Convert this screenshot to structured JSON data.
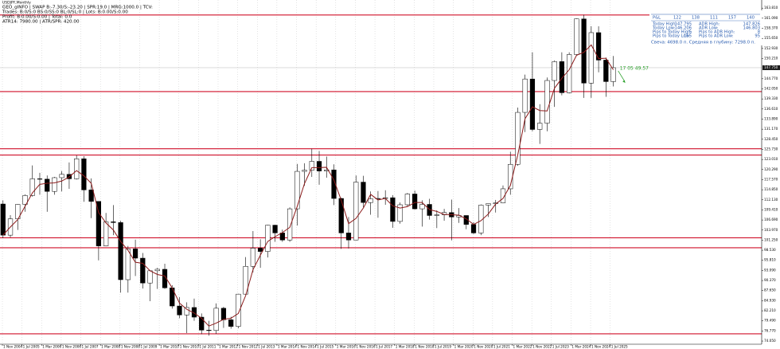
{
  "header": {
    "symbol": "USDJPY,Monthly",
    "lines": [
      "GEO_gINFO | SWAP B:-7.30/S:-23.20 | SPR:19.0 | MRG:1000.0 | TCV:",
      "Trades: B:0/S:0 BS:0/SS:0 BL:0/SL:0 | Lots: B:0.00/S:0.00",
      "Profit: B:0.00/S:0.00 | Total: 0.0",
      "ATR14: 7980.00 | ATR/SPR: 420.00"
    ]
  },
  "info_panel": {
    "bar_label": "P&L",
    "bar_values": [
      "122",
      "138",
      "111",
      "157",
      "140"
    ],
    "rows": [
      [
        "Today High:",
        "147.795",
        "ADR High:",
        "147.826"
      ],
      [
        "Today Low:",
        "146.206",
        "ADR Low:",
        "146.803"
      ],
      [
        "Pips to Today High:",
        "5",
        "Pips to ADR High:",
        "8"
      ],
      [
        "Pips to Today Low:",
        "155",
        "Pips to ADR Low:",
        "95"
      ]
    ],
    "candle_note": "Свеча: 4698.0 п. Средняя в глубину: 7298.0 п."
  },
  "chart_data": {
    "type": "candlestick",
    "timer": "17 05 49.57",
    "x": [
      2004.75,
      2005,
      2005.25,
      2005.5,
      2005.75,
      2006,
      2006.25,
      2006.5,
      2006.75,
      2007,
      2007.25,
      2007.5,
      2007.75,
      2008,
      2008.25,
      2008.5,
      2008.75,
      2009,
      2009.25,
      2009.5,
      2009.75,
      2010,
      2010.25,
      2010.5,
      2010.75,
      2011,
      2011.25,
      2011.5,
      2011.75,
      2012,
      2012.25,
      2012.5,
      2012.75,
      2013,
      2013.25,
      2013.5,
      2013.75,
      2014,
      2014.25,
      2014.5,
      2014.75,
      2015,
      2015.25,
      2015.5,
      2015.75,
      2016,
      2016.25,
      2016.5,
      2016.75,
      2017,
      2017.25,
      2017.5,
      2017.75,
      2018,
      2018.25,
      2018.5,
      2018.75,
      2019,
      2019.25,
      2019.5,
      2019.75,
      2020,
      2020.25,
      2020.5,
      2020.75,
      2021,
      2021.25,
      2021.5,
      2021.75,
      2022,
      2022.25,
      2022.5,
      2022.75,
      2023,
      2023.25,
      2023.5,
      2023.75,
      2024,
      2024.25,
      2024.5,
      2024.75,
      2025,
      2025.25,
      2025.5
    ],
    "open": [
      111.0,
      102.6,
      107,
      110.9,
      113.3,
      117.8,
      117.7,
      114.4,
      118.1,
      119.0,
      117.8,
      123.2,
      114.8,
      111.7,
      99.7,
      106.2,
      106.0,
      90.6,
      98.9,
      96.4,
      89.7,
      93.0,
      93.4,
      88.4,
      83.5,
      81.1,
      83.1,
      80.5,
      77.0,
      76.9,
      82.9,
      79.8,
      78.0,
      86.7,
      94.2,
      99.1,
      98.2,
      105.3,
      103.2,
      101.3,
      109.7,
      119.8,
      120.1,
      122.5,
      119.9,
      120.2,
      112.5,
      103.2,
      101.3,
      116.9,
      111.4,
      112.4,
      112.5,
      112.7,
      106.3,
      110.8,
      113.7,
      109.7,
      110.9,
      107.9,
      108.1,
      108.7,
      107.5,
      107.9,
      105.5,
      103.2,
      110.7,
      111.1,
      111.3,
      115.1,
      121.7,
      135.7,
      144.7,
      131.1,
      132.8,
      144.3,
      149.4,
      141.0,
      151.3,
      160.9,
      143.6,
      157.2,
      149.8,
      144.0
    ],
    "high": [
      112.0,
      108.0,
      111,
      113.6,
      121.4,
      119.4,
      118.7,
      118.3,
      119.9,
      122.2,
      124.1,
      123.9,
      117.9,
      111.7,
      108.6,
      110.7,
      106.5,
      99.7,
      101.4,
      97.8,
      93.1,
      93.8,
      94.9,
      89.1,
      85.9,
      84.5,
      85.5,
      81.5,
      79.5,
      84.2,
      83.3,
      80.6,
      86.8,
      96.7,
      103.7,
      101.5,
      105.4,
      105.4,
      104.1,
      110.1,
      121.8,
      122.0,
      125.9,
      125.3,
      123.8,
      121.7,
      112.7,
      107.5,
      118.7,
      118.6,
      114.4,
      114.5,
      114.7,
      113.4,
      111.4,
      114.0,
      114.6,
      112.0,
      112.4,
      109.3,
      109.7,
      112.2,
      109.9,
      107.9,
      106.1,
      110.9,
      111.1,
      112.1,
      116.0,
      125.1,
      137.0,
      145.9,
      151.9,
      137.9,
      145.1,
      149.7,
      151.9,
      151.9,
      161.0,
      162.0,
      158.9,
      158.9,
      150.5,
      150.9
    ],
    "low": [
      101.8,
      102.0,
      104,
      108.9,
      113,
      113.5,
      108.9,
      113.5,
      114.4,
      115.1,
      117.6,
      111.6,
      107.2,
      95.8,
      99.6,
      102.6,
      87.1,
      87.1,
      91.6,
      88.2,
      84.8,
      88.1,
      88.1,
      82.8,
      80.2,
      76.2,
      79.5,
      75.9,
      75.5,
      76.0,
      77.6,
      77.4,
      77.5,
      86.5,
      92.6,
      93.8,
      96.6,
      100.8,
      100.8,
      100.8,
      105.2,
      115.9,
      118.3,
      116.2,
      118.1,
      110.7,
      98.9,
      99.0,
      101.2,
      110.1,
      108.1,
      107.3,
      110.8,
      104.6,
      105.7,
      110.3,
      109.5,
      104.9,
      106.8,
      104.5,
      106.5,
      101.2,
      105.9,
      104.2,
      102.9,
      102.6,
      107.5,
      108.7,
      111.2,
      113.5,
      121.3,
      130.4,
      130.6,
      127.2,
      130.6,
      137.2,
      140.3,
      140.8,
      151.0,
      139.6,
      139.6,
      146.5,
      139.9,
      142.7
    ],
    "close": [
      102.6,
      107,
      110.9,
      113.3,
      117.8,
      117.7,
      114.4,
      118.1,
      119.0,
      117.8,
      123.2,
      114.8,
      111.7,
      99.7,
      106.2,
      106.0,
      90.6,
      98.9,
      96.4,
      89.7,
      93.0,
      93.4,
      88.4,
      83.5,
      81.1,
      83.1,
      80.5,
      77.0,
      76.9,
      82.9,
      79.8,
      78.0,
      86.7,
      94.2,
      99.1,
      98.2,
      105.3,
      103.2,
      101.3,
      109.7,
      119.8,
      120.1,
      122.5,
      119.9,
      120.2,
      112.5,
      103.2,
      101.3,
      116.9,
      111.4,
      112.4,
      112.5,
      112.7,
      106.3,
      110.8,
      113.7,
      109.7,
      110.9,
      107.9,
      108.1,
      108.7,
      107.5,
      107.9,
      105.5,
      103.2,
      110.7,
      111.1,
      111.3,
      115.1,
      121.7,
      135.7,
      144.7,
      131.1,
      132.8,
      144.3,
      149.4,
      141.0,
      151.3,
      160.9,
      143.6,
      157.2,
      149.8,
      144.0,
      147.75
    ],
    "ma_values": [
      102.6,
      104.8,
      106.8,
      110.4,
      114.0,
      116.3,
      116.6,
      116.7,
      117.2,
      118.3,
      120.0,
      118.6,
      116.6,
      108.7,
      105.9,
      104.0,
      100.9,
      98.5,
      95.3,
      95.0,
      93.0,
      92.0,
      91.6,
      88.4,
      84.3,
      82.6,
      81.6,
      80.2,
      78.1,
      78.9,
      79.9,
      80.2,
      81.5,
      86.3,
      93.3,
      97.2,
      100.9,
      102.2,
      103.3,
      104.7,
      110.3,
      116.5,
      120.8,
      120.8,
      120.9,
      117.5,
      112.0,
      105.7,
      107.1,
      109.9,
      113.6,
      112.1,
      112.5,
      110.5,
      109.9,
      110.3,
      111.4,
      111.4,
      109.5,
      109.0,
      108.2,
      108.1,
      108.0,
      107.0,
      105.5,
      106.5,
      108.3,
      111.0,
      112.5,
      116.0,
      124.2,
      134.0,
      137.2,
      136.2,
      136.1,
      142.2,
      144.9,
      147.2,
      151.1,
      151.9,
      153.9,
      150.2,
      150.3,
      147.2
    ],
    "ma_color": "#8b1a1a",
    "levels": [
      161.95,
      141.3,
      125.9,
      124.2,
      101.9,
      99.2,
      76.0
    ],
    "level_color": "#d0102a",
    "current_price": {
      "value": 147.75,
      "label": "147.750"
    },
    "xlim": [
      2004.752,
      2030.65
    ],
    "ylim": [
      73.2,
      166.0
    ],
    "grid": true,
    "xticks": [
      {
        "value": 2004.8333,
        "label": "1 Nov 2004"
      },
      {
        "value": 2005.5,
        "label": "1 Jul 2005"
      },
      {
        "value": 2006.1667,
        "label": "1 Mar 2006"
      },
      {
        "value": 2006.8333,
        "label": "1 Nov 2006"
      },
      {
        "value": 2007.5,
        "label": "1 Jul 2007"
      },
      {
        "value": 2008.1667,
        "label": "1 Mar 2008"
      },
      {
        "value": 2008.8333,
        "label": "1 Nov 2008"
      },
      {
        "value": 2009.5,
        "label": "1 Jul 2009"
      },
      {
        "value": 2010.1667,
        "label": "1 Mar 2010"
      },
      {
        "value": 2010.8333,
        "label": "1 Nov 2010"
      },
      {
        "value": 2011.5,
        "label": "1 Jul 2011"
      },
      {
        "value": 2012.1667,
        "label": "1 Mar 2012"
      },
      {
        "value": 2012.8333,
        "label": "1 Nov 2012"
      },
      {
        "value": 2013.5,
        "label": "1 Jul 2013"
      },
      {
        "value": 2014.1667,
        "label": "1 Mar 2014"
      },
      {
        "value": 2014.8333,
        "label": "1 Nov 2014"
      },
      {
        "value": 2015.5,
        "label": "1 Jul 2015"
      },
      {
        "value": 2016.1667,
        "label": "1 Mar 2016"
      },
      {
        "value": 2016.8333,
        "label": "1 Nov 2016"
      },
      {
        "value": 2017.5,
        "label": "1 Jul 2017"
      },
      {
        "value": 2018.1667,
        "label": "1 Mar 2018"
      },
      {
        "value": 2018.8333,
        "label": "1 Nov 2018"
      },
      {
        "value": 2019.5,
        "label": "1 Jul 2019"
      },
      {
        "value": 2020.1667,
        "label": "1 Mar 2020"
      },
      {
        "value": 2020.8333,
        "label": "1 Nov 2020"
      },
      {
        "value": 2021.5,
        "label": "1 Jul 2021"
      },
      {
        "value": 2022.1667,
        "label": "1 Mar 2022"
      },
      {
        "value": 2022.8333,
        "label": "1 Nov 2022"
      },
      {
        "value": 2023.5,
        "label": "1 Jul 2023"
      },
      {
        "value": 2024.1667,
        "label": "1 Mar 2024"
      },
      {
        "value": 2024.8333,
        "label": "1 Nov 2024"
      },
      {
        "value": 2025.5,
        "label": "1 Jul 2025"
      }
    ],
    "yticks": [
      {
        "value": 163.81,
        "label": "163.810"
      },
      {
        "value": 161.09,
        "label": "161.090"
      },
      {
        "value": 158.37,
        "label": "158.370"
      },
      {
        "value": 155.65,
        "label": "155.650"
      },
      {
        "value": 152.93,
        "label": "152.930"
      },
      {
        "value": 150.21,
        "label": "150.210"
      },
      {
        "value": 144.77,
        "label": "144.770"
      },
      {
        "value": 142.05,
        "label": "142.050"
      },
      {
        "value": 139.33,
        "label": "139.330"
      },
      {
        "value": 136.61,
        "label": "136.610"
      },
      {
        "value": 133.89,
        "label": "133.890"
      },
      {
        "value": 131.17,
        "label": "131.170"
      },
      {
        "value": 128.45,
        "label": "128.450"
      },
      {
        "value": 125.73,
        "label": "125.730"
      },
      {
        "value": 123.01,
        "label": "123.010"
      },
      {
        "value": 120.29,
        "label": "120.290"
      },
      {
        "value": 117.57,
        "label": "117.570"
      },
      {
        "value": 114.85,
        "label": "114.850"
      },
      {
        "value": 112.13,
        "label": "112.130"
      },
      {
        "value": 109.41,
        "label": "109.410"
      },
      {
        "value": 106.69,
        "label": "106.690"
      },
      {
        "value": 103.97,
        "label": "103.970"
      },
      {
        "value": 101.25,
        "label": "101.250"
      },
      {
        "value": 98.53,
        "label": "98.530"
      },
      {
        "value": 95.81,
        "label": "95.810"
      },
      {
        "value": 93.09,
        "label": "93.090"
      },
      {
        "value": 90.37,
        "label": "90.370"
      },
      {
        "value": 87.65,
        "label": "87.650"
      },
      {
        "value": 84.93,
        "label": "84.930"
      },
      {
        "value": 82.21,
        "label": "82.210"
      },
      {
        "value": 79.49,
        "label": "79.490"
      },
      {
        "value": 76.77,
        "label": "76.770"
      },
      {
        "value": 74.05,
        "label": "74.050"
      }
    ]
  }
}
